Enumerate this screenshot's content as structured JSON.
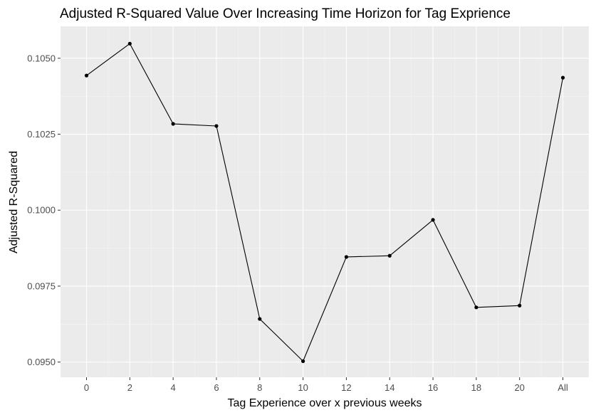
{
  "chart_data": {
    "type": "line",
    "title": "Adjusted R-Squared Value Over Increasing Time Horizon for Tag Exprience",
    "xlabel": "Tag Experience over x previous weeks",
    "ylabel": "Adjusted R-Squared",
    "categories": [
      "0",
      "2",
      "4",
      "6",
      "8",
      "10",
      "12",
      "14",
      "16",
      "18",
      "20",
      "All"
    ],
    "series": [
      {
        "values": [
          0.10443,
          0.10548,
          0.10284,
          0.10277,
          0.09642,
          0.09503,
          0.09846,
          0.0985,
          0.09968,
          0.0968,
          0.09686,
          0.10436
        ]
      }
    ],
    "yticks": [
      "0.0950",
      "0.0975",
      "0.1000",
      "0.1025",
      "0.1050"
    ],
    "ylim": [
      0.0945,
      0.10605
    ],
    "grid": true,
    "legend": "none",
    "colors": {
      "panel_background": "#ebebeb",
      "grid_major": "#ffffff",
      "line": "#000000",
      "point": "#000000"
    }
  }
}
